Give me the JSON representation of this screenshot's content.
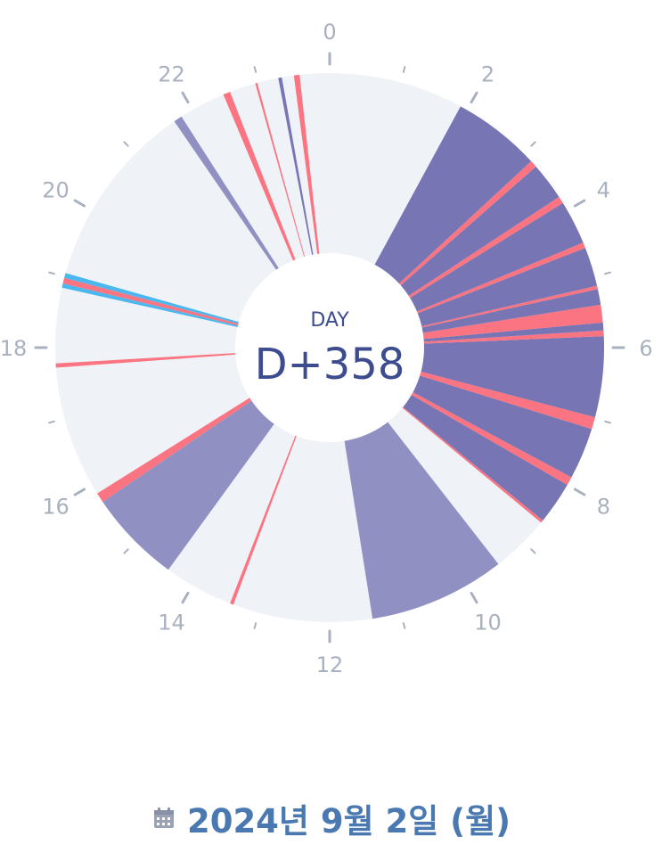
{
  "chart_data": {
    "type": "pie",
    "hour_labels": [
      "0",
      "2",
      "4",
      "6",
      "8",
      "10",
      "12",
      "14",
      "16",
      "18",
      "20",
      "22"
    ],
    "colors": {
      "background": "#eff2f6",
      "sleep": "#7775b3",
      "nap": "#9190c3",
      "feeding": "#fb7482",
      "diaper": "#4ab8ee",
      "tick": "#a9b0bf"
    },
    "segments": [
      {
        "start": 23.5,
        "end": 23.58,
        "category": "feeding"
      },
      {
        "start": 23.28,
        "end": 23.33,
        "category": "sleep"
      },
      {
        "start": 22.95,
        "end": 22.98,
        "category": "feeding"
      },
      {
        "start": 22.48,
        "end": 22.58,
        "category": "feeding"
      },
      {
        "start": 21.7,
        "end": 21.82,
        "category": "nap"
      },
      {
        "start": 18.98,
        "end": 19.05,
        "category": "diaper"
      },
      {
        "start": 18.9,
        "end": 18.98,
        "category": "feeding"
      },
      {
        "start": 18.84,
        "end": 18.9,
        "category": "diaper"
      },
      {
        "start": 17.72,
        "end": 17.78,
        "category": "feeding"
      },
      {
        "start": 15.72,
        "end": 15.86,
        "category": "feeding"
      },
      {
        "start": 14.4,
        "end": 15.72,
        "category": "nap"
      },
      {
        "start": 13.37,
        "end": 13.42,
        "category": "feeding"
      },
      {
        "start": 9.47,
        "end": 11.4,
        "category": "nap"
      },
      {
        "start": 8.6,
        "end": 8.64,
        "category": "feeding"
      },
      {
        "start": 8.0,
        "end": 8.6,
        "category": "sleep"
      },
      {
        "start": 7.88,
        "end": 8.0,
        "category": "feeding"
      },
      {
        "start": 7.15,
        "end": 7.88,
        "category": "sleep"
      },
      {
        "start": 6.98,
        "end": 7.15,
        "category": "feeding"
      },
      {
        "start": 5.84,
        "end": 6.98,
        "category": "sleep"
      },
      {
        "start": 5.76,
        "end": 5.84,
        "category": "feeding"
      },
      {
        "start": 5.65,
        "end": 5.76,
        "category": "sleep"
      },
      {
        "start": 5.4,
        "end": 5.65,
        "category": "feeding"
      },
      {
        "start": 5.18,
        "end": 5.4,
        "category": "sleep"
      },
      {
        "start": 5.13,
        "end": 5.18,
        "category": "feeding"
      },
      {
        "start": 4.58,
        "end": 5.13,
        "category": "sleep"
      },
      {
        "start": 4.5,
        "end": 4.58,
        "category": "feeding"
      },
      {
        "start": 3.88,
        "end": 4.5,
        "category": "sleep"
      },
      {
        "start": 3.78,
        "end": 3.88,
        "category": "feeding"
      },
      {
        "start": 3.25,
        "end": 3.78,
        "category": "sleep"
      },
      {
        "start": 3.15,
        "end": 3.25,
        "category": "feeding"
      },
      {
        "start": 1.9,
        "end": 3.15,
        "category": "sleep"
      }
    ]
  },
  "center": {
    "label": "DAY",
    "value": "D+358"
  },
  "footer": {
    "date": "2024년 9월 2일 (월)",
    "icon": "calendar-icon"
  }
}
